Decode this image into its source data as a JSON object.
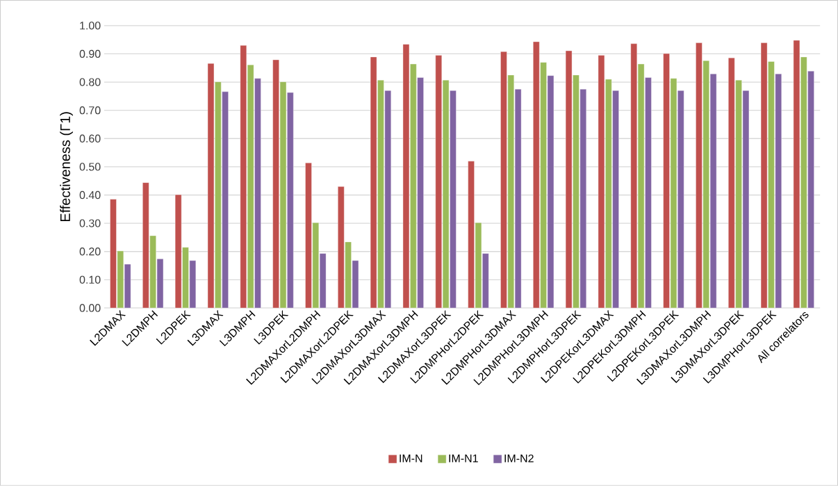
{
  "chart_data": {
    "type": "bar",
    "ylabel": "Effectiveness (Γ1)",
    "categories": [
      "L2DMAX",
      "L2DMPH",
      "L2DPEK",
      "L3DMAX",
      "L3DMPH",
      "L3DPEK",
      "L2DMAXorL2DMPH",
      "L2DMAXorL2DPEK",
      "L2DMAXorL3DMAX",
      "L2DMAXorL3DMPH",
      "L2DMAXorL3DPEK",
      "L2DMPHorL2DPEK",
      "L2DMPHorL3DMAX",
      "L2DMPHorL3DMPH",
      "L2DMPHorL3DPEK",
      "L2DPEKorL3DMAX",
      "L2DPEKorL3DMPH",
      "L2DPEKorL3DPEK",
      "L3DMAXorL3DMPH",
      "L3DMAXorL3DPEK",
      "L3DMPHorL3DPEK",
      "All correlators"
    ],
    "series": [
      {
        "name": "IM-N",
        "color": "#c0504d",
        "values": [
          0.385,
          0.444,
          0.401,
          0.866,
          0.93,
          0.879,
          0.514,
          0.43,
          0.889,
          0.934,
          0.895,
          0.52,
          0.908,
          0.943,
          0.911,
          0.895,
          0.936,
          0.901,
          0.939,
          0.886,
          0.939,
          0.948
        ]
      },
      {
        "name": "IM-N1",
        "color": "#9bbb59",
        "values": [
          0.202,
          0.256,
          0.215,
          0.801,
          0.861,
          0.801,
          0.302,
          0.234,
          0.807,
          0.864,
          0.807,
          0.302,
          0.825,
          0.87,
          0.825,
          0.81,
          0.864,
          0.813,
          0.876,
          0.807,
          0.873,
          0.889
        ]
      },
      {
        "name": "IM-N2",
        "color": "#8064a2",
        "values": [
          0.155,
          0.174,
          0.168,
          0.766,
          0.813,
          0.763,
          0.193,
          0.168,
          0.77,
          0.816,
          0.77,
          0.193,
          0.775,
          0.823,
          0.775,
          0.77,
          0.816,
          0.77,
          0.829,
          0.77,
          0.829,
          0.839
        ]
      }
    ],
    "ylim": [
      0,
      1
    ],
    "yticks": [
      {
        "value": 0,
        "label": "0.00"
      },
      {
        "value": 0.1,
        "label": "0.10"
      },
      {
        "value": 0.2,
        "label": "0.20"
      },
      {
        "value": 0.3,
        "label": "0.30"
      },
      {
        "value": 0.4,
        "label": "0.40"
      },
      {
        "value": 0.5,
        "label": "0.50"
      },
      {
        "value": 0.6,
        "label": "0.60"
      },
      {
        "value": 0.7,
        "label": "0.70"
      },
      {
        "value": 0.8,
        "label": "0.80"
      },
      {
        "value": 0.9,
        "label": "0.90"
      },
      {
        "value": 1,
        "label": "1.00"
      }
    ],
    "grid": "y",
    "legend": "bottom"
  }
}
